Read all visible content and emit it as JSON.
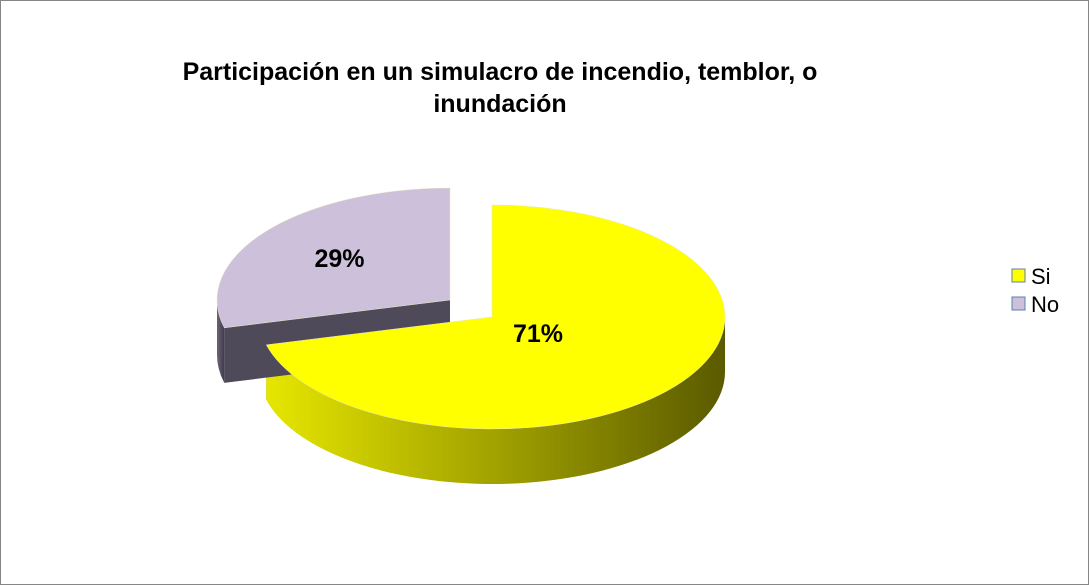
{
  "chart_data": {
    "type": "pie",
    "title": "Participación en un simulacro de incendio, temblor, o inundación",
    "categories": [
      "Si",
      "No"
    ],
    "values": [
      71,
      29
    ],
    "value_labels": [
      "71%",
      "29%"
    ],
    "colors": [
      "#ffff00",
      "#ccc0da"
    ],
    "legend": "right"
  }
}
